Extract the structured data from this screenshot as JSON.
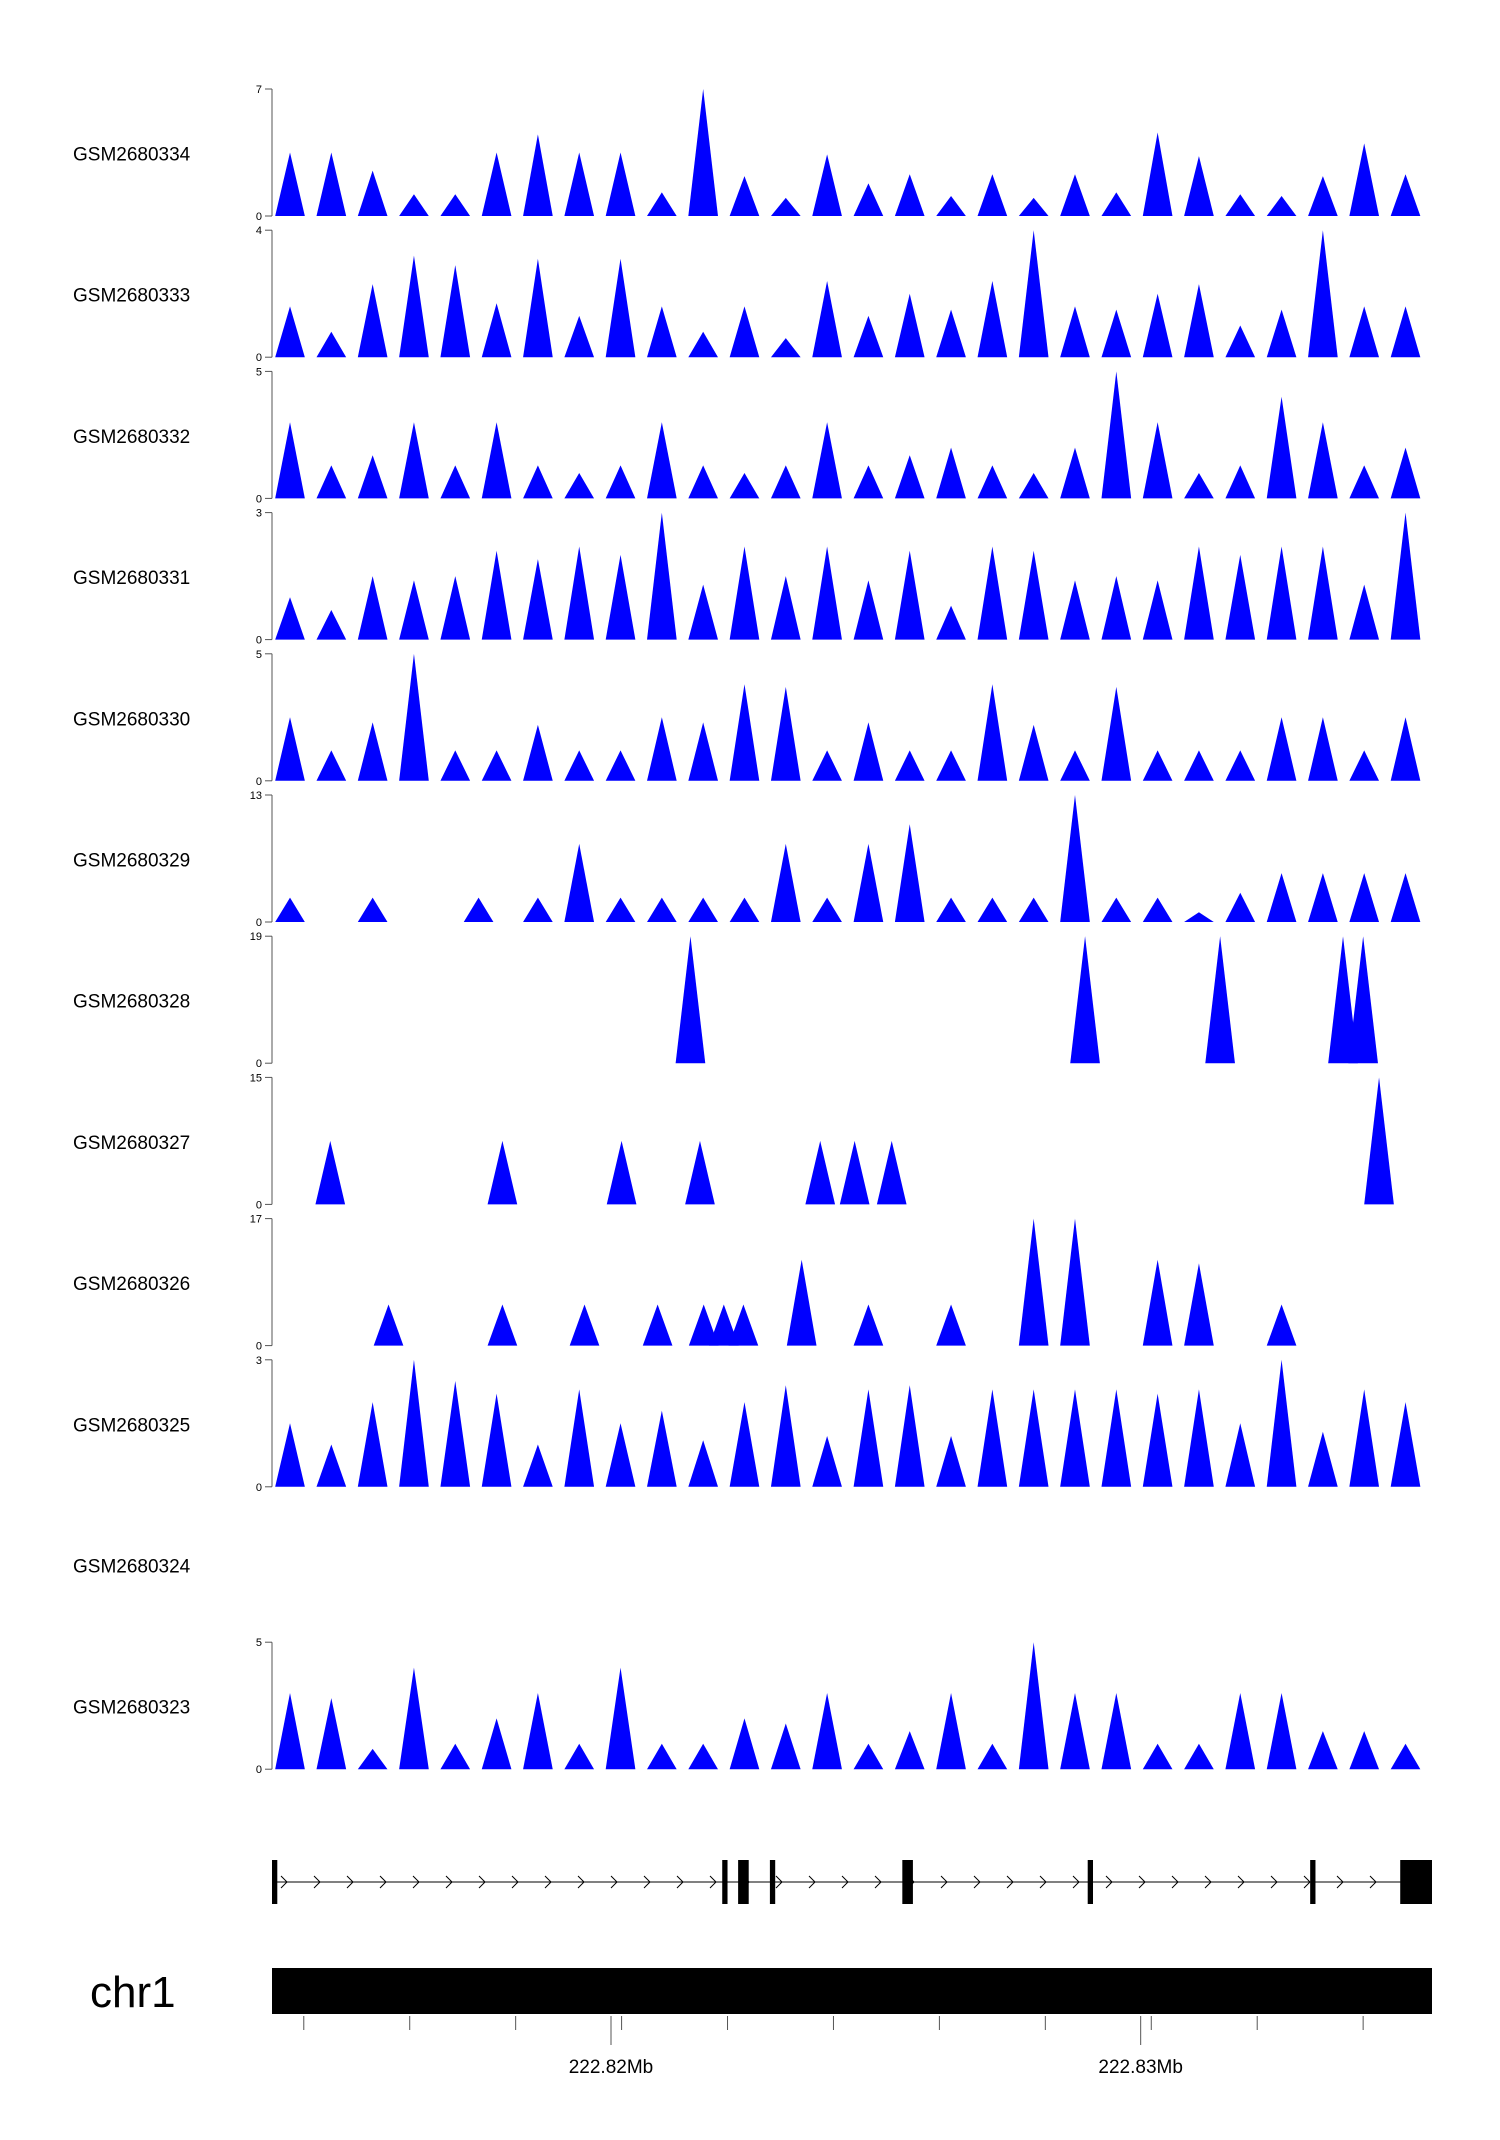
{
  "colors": {
    "coverage": "#0000ff",
    "axis": "#555555",
    "gene": "#000000",
    "chromosome": "#000000"
  },
  "chart_data": {
    "type": "area",
    "title": "",
    "xlabel": "",
    "ylabel": "",
    "xlim": [
      222.8136,
      222.8355
    ],
    "x_unit": "Mb",
    "x_ticks_minor": [
      222.8142,
      222.8162,
      222.8182,
      222.8202,
      222.8222,
      222.8242,
      222.8262,
      222.8282,
      222.8302,
      222.8322,
      222.8342
    ],
    "x_tick_labels": [
      {
        "value": 222.82,
        "label": "222.82Mb"
      },
      {
        "value": 222.83,
        "label": "222.83Mb"
      }
    ],
    "chromosome_label": "chr1",
    "gene_model": {
      "strand": "+",
      "exons": [
        [
          222.8136,
          222.8137
        ],
        [
          222.8221,
          222.8222
        ],
        [
          222.8224,
          222.8226
        ],
        [
          222.823,
          222.8231
        ],
        [
          222.8255,
          222.8257
        ],
        [
          222.829,
          222.8291
        ],
        [
          222.8332,
          222.8333
        ],
        [
          222.8349,
          222.8355
        ]
      ]
    },
    "series": [
      {
        "name": "GSM2680334",
        "ymax": 7,
        "peaks": [
          [
            222.81394,
            3.5
          ],
          [
            222.81472,
            3.5
          ],
          [
            222.8155,
            2.5
          ],
          [
            222.81628,
            1.2
          ],
          [
            222.81706,
            1.2
          ],
          [
            222.81784,
            3.5
          ],
          [
            222.81862,
            4.5
          ],
          [
            222.8194,
            3.5
          ],
          [
            222.82018,
            3.5
          ],
          [
            222.82096,
            1.3
          ],
          [
            222.82174,
            7.0
          ],
          [
            222.82252,
            2.2
          ],
          [
            222.8233,
            1.0
          ],
          [
            222.82408,
            3.4
          ],
          [
            222.82486,
            1.8
          ],
          [
            222.82564,
            2.3
          ],
          [
            222.82642,
            1.1
          ],
          [
            222.8272,
            2.3
          ],
          [
            222.82798,
            1.0
          ],
          [
            222.82876,
            2.3
          ],
          [
            222.82954,
            1.3
          ],
          [
            222.83032,
            4.6
          ],
          [
            222.8311,
            3.3
          ],
          [
            222.83188,
            1.2
          ],
          [
            222.83266,
            1.1
          ],
          [
            222.83344,
            2.2
          ],
          [
            222.83422,
            4.0
          ],
          [
            222.835,
            2.3
          ]
        ]
      },
      {
        "name": "GSM2680333",
        "ymax": 4,
        "peaks": [
          [
            222.81394,
            1.6
          ],
          [
            222.81472,
            0.8
          ],
          [
            222.8155,
            2.3
          ],
          [
            222.81628,
            3.2
          ],
          [
            222.81706,
            2.9
          ],
          [
            222.81784,
            1.7
          ],
          [
            222.81862,
            3.1
          ],
          [
            222.8194,
            1.3
          ],
          [
            222.82018,
            3.1
          ],
          [
            222.82096,
            1.6
          ],
          [
            222.82174,
            0.8
          ],
          [
            222.82252,
            1.6
          ],
          [
            222.8233,
            0.6
          ],
          [
            222.82408,
            2.4
          ],
          [
            222.82486,
            1.3
          ],
          [
            222.82564,
            2.0
          ],
          [
            222.82642,
            1.5
          ],
          [
            222.8272,
            2.4
          ],
          [
            222.82798,
            4.0
          ],
          [
            222.82876,
            1.6
          ],
          [
            222.82954,
            1.5
          ],
          [
            222.83032,
            2.0
          ],
          [
            222.8311,
            2.3
          ],
          [
            222.83188,
            1.0
          ],
          [
            222.83266,
            1.5
          ],
          [
            222.83344,
            4.0
          ],
          [
            222.83422,
            1.6
          ],
          [
            222.835,
            1.6
          ]
        ]
      },
      {
        "name": "GSM2680332",
        "ymax": 5,
        "peaks": [
          [
            222.81394,
            3.0
          ],
          [
            222.81472,
            1.3
          ],
          [
            222.8155,
            1.7
          ],
          [
            222.81628,
            3.0
          ],
          [
            222.81706,
            1.3
          ],
          [
            222.81784,
            3.0
          ],
          [
            222.81862,
            1.3
          ],
          [
            222.8194,
            1.0
          ],
          [
            222.82018,
            1.3
          ],
          [
            222.82096,
            3.0
          ],
          [
            222.82174,
            1.3
          ],
          [
            222.82252,
            1.0
          ],
          [
            222.8233,
            1.3
          ],
          [
            222.82408,
            3.0
          ],
          [
            222.82486,
            1.3
          ],
          [
            222.82564,
            1.7
          ],
          [
            222.82642,
            2.0
          ],
          [
            222.8272,
            1.3
          ],
          [
            222.82798,
            1.0
          ],
          [
            222.82876,
            2.0
          ],
          [
            222.82954,
            5.0
          ],
          [
            222.83032,
            3.0
          ],
          [
            222.8311,
            1.0
          ],
          [
            222.83188,
            1.3
          ],
          [
            222.83266,
            4.0
          ],
          [
            222.83344,
            3.0
          ],
          [
            222.83422,
            1.3
          ],
          [
            222.835,
            2.0
          ]
        ]
      },
      {
        "name": "GSM2680331",
        "ymax": 3,
        "peaks": [
          [
            222.81394,
            1.0
          ],
          [
            222.81472,
            0.7
          ],
          [
            222.8155,
            1.5
          ],
          [
            222.81628,
            1.4
          ],
          [
            222.81706,
            1.5
          ],
          [
            222.81784,
            2.1
          ],
          [
            222.81862,
            1.9
          ],
          [
            222.8194,
            2.2
          ],
          [
            222.82018,
            2.0
          ],
          [
            222.82096,
            3.0
          ],
          [
            222.82174,
            1.3
          ],
          [
            222.82252,
            2.2
          ],
          [
            222.8233,
            1.5
          ],
          [
            222.82408,
            2.2
          ],
          [
            222.82486,
            1.4
          ],
          [
            222.82564,
            2.1
          ],
          [
            222.82642,
            0.8
          ],
          [
            222.8272,
            2.2
          ],
          [
            222.82798,
            2.1
          ],
          [
            222.82876,
            1.4
          ],
          [
            222.82954,
            1.5
          ],
          [
            222.83032,
            1.4
          ],
          [
            222.8311,
            2.2
          ],
          [
            222.83188,
            2.0
          ],
          [
            222.83266,
            2.2
          ],
          [
            222.83344,
            2.2
          ],
          [
            222.83422,
            1.3
          ],
          [
            222.835,
            3.0
          ]
        ]
      },
      {
        "name": "GSM2680330",
        "ymax": 5,
        "peaks": [
          [
            222.81394,
            2.5
          ],
          [
            222.81472,
            1.2
          ],
          [
            222.8155,
            2.3
          ],
          [
            222.81628,
            5.0
          ],
          [
            222.81706,
            1.2
          ],
          [
            222.81784,
            1.2
          ],
          [
            222.81862,
            2.2
          ],
          [
            222.8194,
            1.2
          ],
          [
            222.82018,
            1.2
          ],
          [
            222.82096,
            2.5
          ],
          [
            222.82174,
            2.3
          ],
          [
            222.82252,
            3.8
          ],
          [
            222.8233,
            3.7
          ],
          [
            222.82408,
            1.2
          ],
          [
            222.82486,
            2.3
          ],
          [
            222.82564,
            1.2
          ],
          [
            222.82642,
            1.2
          ],
          [
            222.8272,
            3.8
          ],
          [
            222.82798,
            2.2
          ],
          [
            222.82876,
            1.2
          ],
          [
            222.82954,
            3.7
          ],
          [
            222.83032,
            1.2
          ],
          [
            222.8311,
            1.2
          ],
          [
            222.83188,
            1.2
          ],
          [
            222.83266,
            2.5
          ],
          [
            222.83344,
            2.5
          ],
          [
            222.83422,
            1.2
          ],
          [
            222.835,
            2.5
          ]
        ]
      },
      {
        "name": "GSM2680329",
        "ymax": 13,
        "peaks": [
          [
            222.81394,
            2.5
          ],
          [
            222.8155,
            2.5
          ],
          [
            222.8175,
            2.5
          ],
          [
            222.81862,
            2.5
          ],
          [
            222.8194,
            8.0
          ],
          [
            222.82018,
            2.5
          ],
          [
            222.82096,
            2.5
          ],
          [
            222.82174,
            2.5
          ],
          [
            222.82252,
            2.5
          ],
          [
            222.8233,
            8.0
          ],
          [
            222.82408,
            2.5
          ],
          [
            222.82486,
            8.0
          ],
          [
            222.82564,
            10.0
          ],
          [
            222.82642,
            2.5
          ],
          [
            222.8272,
            2.5
          ],
          [
            222.82798,
            2.5
          ],
          [
            222.82876,
            13.0
          ],
          [
            222.82954,
            2.5
          ],
          [
            222.83032,
            2.5
          ],
          [
            222.8311,
            1.0
          ],
          [
            222.83188,
            3.0
          ],
          [
            222.83266,
            5.0
          ],
          [
            222.83344,
            5.0
          ],
          [
            222.83422,
            5.0
          ],
          [
            222.835,
            5.0
          ]
        ]
      },
      {
        "name": "GSM2680328",
        "ymax": 19,
        "peaks": [
          [
            222.8215,
            19.0
          ],
          [
            222.82895,
            19.0
          ],
          [
            222.8315,
            19.0
          ],
          [
            222.83382,
            19.0
          ],
          [
            222.8342,
            19.0
          ]
        ]
      },
      {
        "name": "GSM2680327",
        "ymax": 15,
        "peaks": [
          [
            222.8147,
            7.5
          ],
          [
            222.81795,
            7.5
          ],
          [
            222.8202,
            7.5
          ],
          [
            222.82168,
            7.5
          ],
          [
            222.82395,
            7.5
          ],
          [
            222.8246,
            7.5
          ],
          [
            222.8253,
            7.5
          ],
          [
            222.8345,
            15.0
          ]
        ]
      },
      {
        "name": "GSM2680326",
        "ymax": 17,
        "peaks": [
          [
            222.8158,
            5.5
          ],
          [
            222.81795,
            5.5
          ],
          [
            222.8195,
            5.5
          ],
          [
            222.82088,
            5.5
          ],
          [
            222.82175,
            5.5
          ],
          [
            222.82213,
            5.5
          ],
          [
            222.8225,
            5.5
          ],
          [
            222.8236,
            11.5
          ],
          [
            222.82486,
            5.5
          ],
          [
            222.82642,
            5.5
          ],
          [
            222.82798,
            17.0
          ],
          [
            222.82876,
            17.0
          ],
          [
            222.83032,
            11.5
          ],
          [
            222.8311,
            11.0
          ],
          [
            222.83266,
            5.5
          ]
        ]
      },
      {
        "name": "GSM2680325",
        "ymax": 3,
        "peaks": [
          [
            222.81394,
            1.5
          ],
          [
            222.81472,
            1.0
          ],
          [
            222.8155,
            2.0
          ],
          [
            222.81628,
            3.0
          ],
          [
            222.81706,
            2.5
          ],
          [
            222.81784,
            2.2
          ],
          [
            222.81862,
            1.0
          ],
          [
            222.8194,
            2.3
          ],
          [
            222.82018,
            1.5
          ],
          [
            222.82096,
            1.8
          ],
          [
            222.82174,
            1.1
          ],
          [
            222.82252,
            2.0
          ],
          [
            222.8233,
            2.4
          ],
          [
            222.82408,
            1.2
          ],
          [
            222.82486,
            2.3
          ],
          [
            222.82564,
            2.4
          ],
          [
            222.82642,
            1.2
          ],
          [
            222.8272,
            2.3
          ],
          [
            222.82798,
            2.3
          ],
          [
            222.82876,
            2.3
          ],
          [
            222.82954,
            2.3
          ],
          [
            222.83032,
            2.2
          ],
          [
            222.8311,
            2.3
          ],
          [
            222.83188,
            1.5
          ],
          [
            222.83266,
            3.0
          ],
          [
            222.83344,
            1.3
          ],
          [
            222.83422,
            2.3
          ],
          [
            222.835,
            2.0
          ]
        ]
      },
      {
        "name": "GSM2680324",
        "ymax": null,
        "peaks": []
      },
      {
        "name": "GSM2680323",
        "ymax": 5,
        "peaks": [
          [
            222.81394,
            3.0
          ],
          [
            222.81472,
            2.8
          ],
          [
            222.8155,
            0.8
          ],
          [
            222.81628,
            4.0
          ],
          [
            222.81706,
            1.0
          ],
          [
            222.81784,
            2.0
          ],
          [
            222.81862,
            3.0
          ],
          [
            222.8194,
            1.0
          ],
          [
            222.82018,
            4.0
          ],
          [
            222.82096,
            1.0
          ],
          [
            222.82174,
            1.0
          ],
          [
            222.82252,
            2.0
          ],
          [
            222.8233,
            1.8
          ],
          [
            222.82408,
            3.0
          ],
          [
            222.82486,
            1.0
          ],
          [
            222.82564,
            1.5
          ],
          [
            222.82642,
            3.0
          ],
          [
            222.8272,
            1.0
          ],
          [
            222.82798,
            5.0
          ],
          [
            222.82876,
            3.0
          ],
          [
            222.82954,
            3.0
          ],
          [
            222.83032,
            1.0
          ],
          [
            222.8311,
            1.0
          ],
          [
            222.83188,
            3.0
          ],
          [
            222.83266,
            3.0
          ],
          [
            222.83344,
            1.5
          ],
          [
            222.83422,
            1.5
          ],
          [
            222.835,
            1.0
          ]
        ]
      }
    ]
  }
}
